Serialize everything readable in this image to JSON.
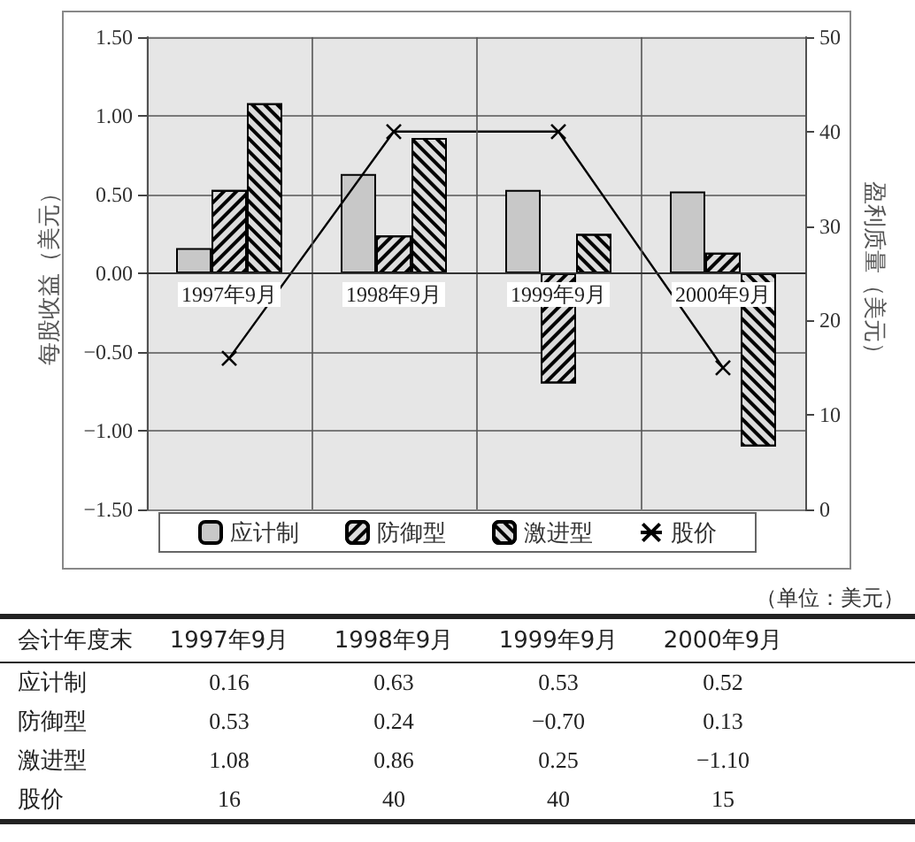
{
  "chart_data": {
    "type": "bar",
    "ylabel": "每股收益（美元）",
    "y2label": "盈利质量（美元）",
    "categories": [
      "1997年9月",
      "1998年9月",
      "1999年9月",
      "2000年9月"
    ],
    "series": [
      {
        "name": "应计制",
        "color": "#c8c8c8",
        "values": [
          0.16,
          0.63,
          0.53,
          0.52
        ],
        "value_labels": [
          "0.16",
          "0.63",
          "0.53",
          "0.52"
        ]
      },
      {
        "name": "防御型",
        "color": "#dcdcdc",
        "values": [
          0.53,
          0.24,
          -0.7,
          0.13
        ],
        "value_labels": [
          "0.53",
          "0.24",
          "−0.70",
          "0.13"
        ]
      },
      {
        "name": "激进型",
        "color": "#dcdcdc",
        "values": [
          1.08,
          0.86,
          0.25,
          -1.1
        ],
        "value_labels": [
          "1.08",
          "0.86",
          "0.25",
          "−1.10"
        ]
      },
      {
        "name": "股价",
        "type": "line",
        "axis": "y2",
        "color": "#000000",
        "marker": "cross",
        "values": [
          16,
          40,
          40,
          15
        ],
        "value_labels": [
          "16",
          "40",
          "40",
          "15"
        ]
      }
    ],
    "ylim": [
      -1.5,
      1.5
    ],
    "yticks": [
      {
        "value": -1.5,
        "label": "−1.50"
      },
      {
        "value": -1,
        "label": "−1.00"
      },
      {
        "value": -0.5,
        "label": "−0.50"
      },
      {
        "value": 0,
        "label": "0.00"
      },
      {
        "value": 0.5,
        "label": "0.50"
      },
      {
        "value": 1,
        "label": "1.00"
      },
      {
        "value": 1.5,
        "label": "1.50"
      }
    ],
    "y2lim": [
      0,
      50
    ],
    "y2ticks": [
      0,
      10,
      20,
      30,
      40,
      50
    ],
    "grid": true,
    "legend": "bottom",
    "annotations": [
      "（单位：美元）",
      "会计年度末"
    ]
  }
}
